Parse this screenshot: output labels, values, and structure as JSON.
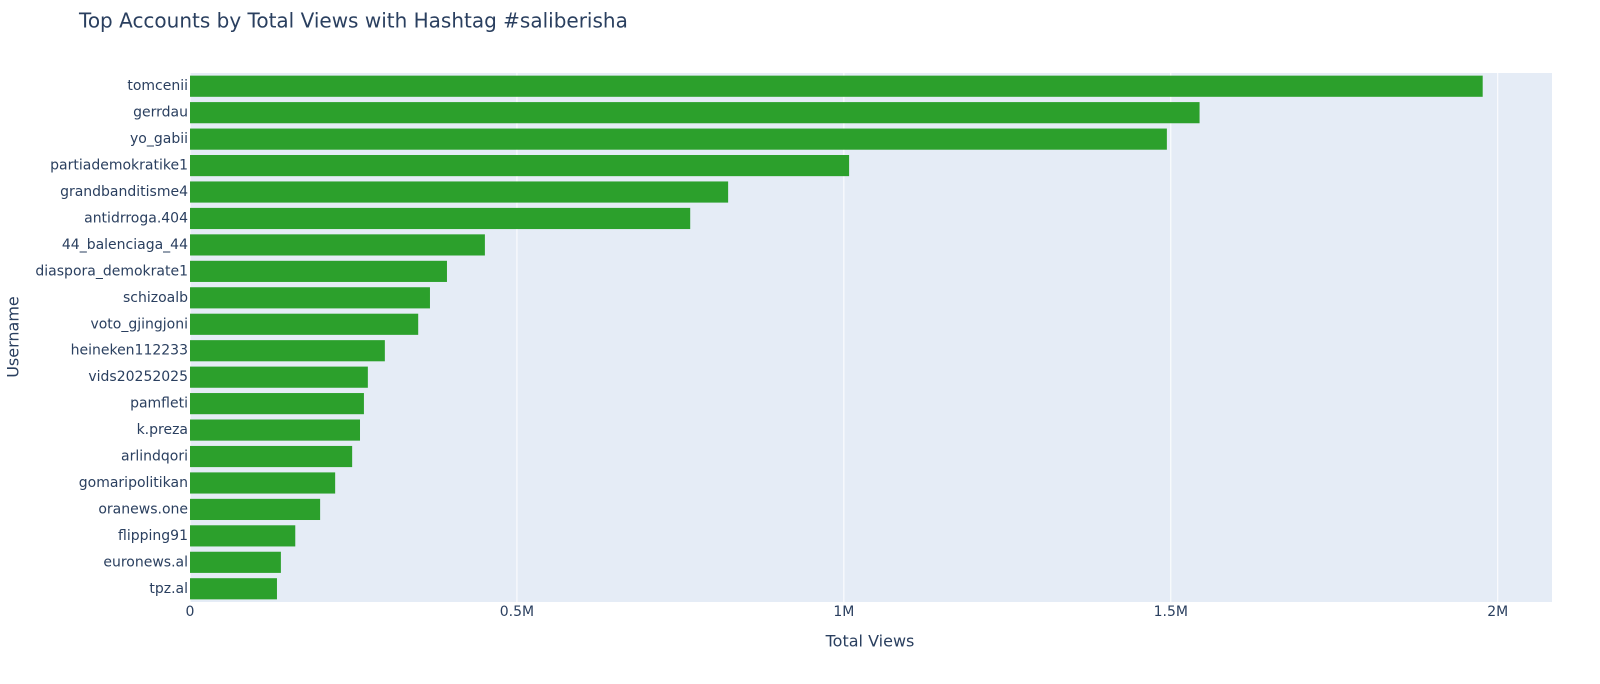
{
  "chart_data": {
    "type": "hbar",
    "title": "Top Accounts by Total Views with Hashtag #saliberisha",
    "x_label": "Total Views",
    "y_label": "Username",
    "categories": [
      "tomcenii",
      "gerrdau",
      "yo_gabii",
      "partiademokratike1",
      "grandbanditisme4",
      "antidrroga.404",
      "44_balenciaga_44",
      "diaspora_demokrate1",
      "schizoalb",
      "voto_gjingjoni",
      "heineken112233",
      "vids20252025",
      "pamfleti",
      "k.preza",
      "arlindqori",
      "gomaripolitikan",
      "oranews.one",
      "flipping91",
      "euronews.al",
      "tpz.al"
    ],
    "values": [
      1977000,
      1544000,
      1494000,
      1008000,
      823000,
      765000,
      451000,
      393000,
      367000,
      349000,
      298000,
      272000,
      266000,
      260000,
      248000,
      222000,
      199000,
      161000,
      139000,
      133000
    ],
    "color": "#2ca02c",
    "xlim": [
      0,
      2083000
    ],
    "xticks": [
      0,
      {
        "value": 500000,
        "label": "0.5M"
      },
      {
        "value": 1000000,
        "label": "1M"
      },
      {
        "value": 1500000,
        "label": "1.5M"
      },
      {
        "value": 2000000,
        "label": "2M"
      }
    ],
    "grid": true
  }
}
